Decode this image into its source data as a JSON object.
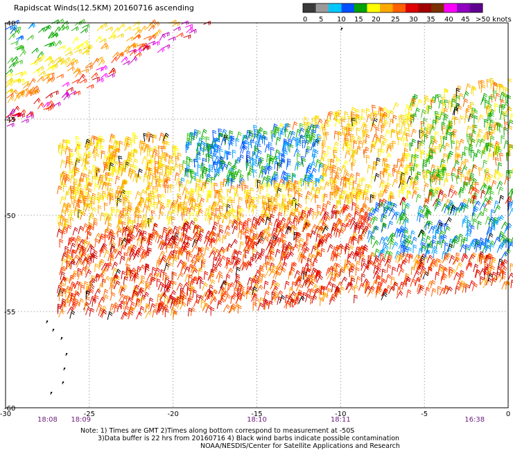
{
  "title": "Rapidscat Winds(12.5KM) 20160716 ascending",
  "legend": {
    "labels": [
      "0",
      "5",
      "10",
      "15",
      "20",
      "25",
      "30",
      "35",
      "40",
      "45",
      ">50 knots"
    ],
    "colors": [
      "#3a3a3a",
      "#9a9a9a",
      "#00c8ff",
      "#0050ff",
      "#00a000",
      "#ffff00",
      "#ffaa00",
      "#ff6000",
      "#e00000",
      "#a00000",
      "#7a3000",
      "#ff00ff",
      "#9000c0",
      "#600090"
    ]
  },
  "x_axis": {
    "ticks": [
      "-30",
      "-25",
      "-20",
      "-15",
      "-10",
      "-5",
      "0"
    ],
    "values": [
      -30,
      -25,
      -20,
      -15,
      -10,
      -5,
      0
    ]
  },
  "y_axis": {
    "ticks": [
      "-40",
      "-45",
      "-50",
      "-55",
      "-60"
    ],
    "values": [
      -40,
      -45,
      -50,
      -55,
      -60
    ]
  },
  "times": [
    {
      "label": "18:08",
      "lon": -27.5
    },
    {
      "label": "18:09",
      "lon": -25.5
    },
    {
      "label": "18:10",
      "lon": -15
    },
    {
      "label": "18:11",
      "lon": -10
    },
    {
      "label": "16:38",
      "lon": -2
    }
  ],
  "notes": [
    "Note: 1) Times are GMT 2)Times along bottom correspond to measurement at -50S",
    "3)Data buffer is 22 hrs from 20160716 4) Black wind barbs indicate possible contamination",
    "NOAA/NESDIS/Center for Satellite Applications and Research"
  ]
}
